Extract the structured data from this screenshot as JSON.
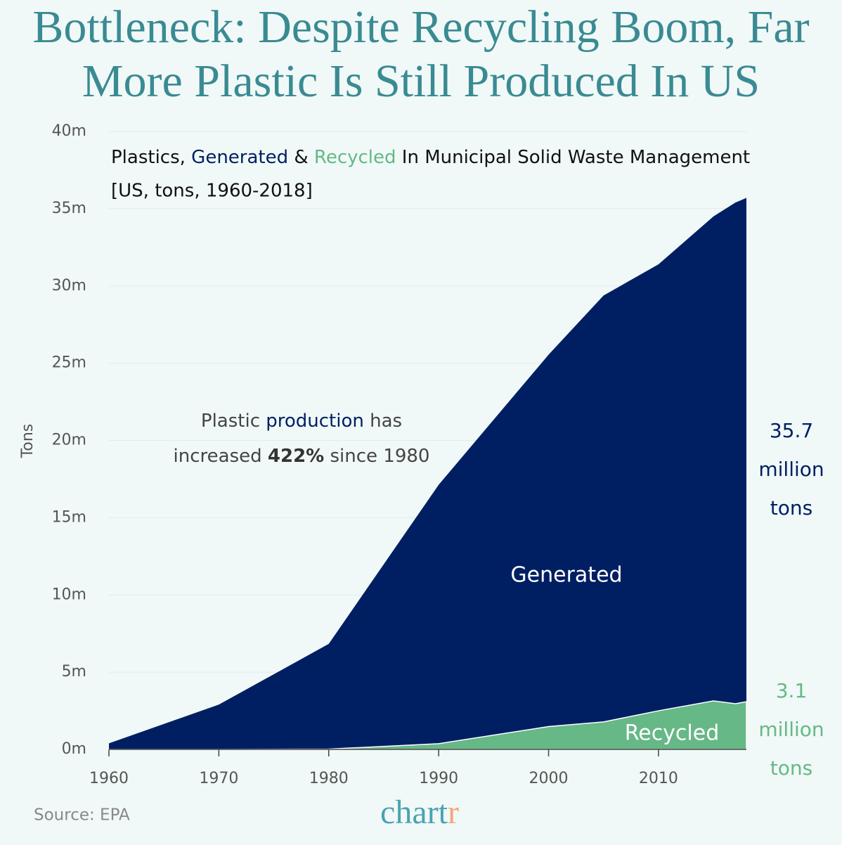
{
  "chart_data": {
    "type": "area",
    "title": [
      "Bottleneck: Despite Recycling Boom, Far",
      "More Plastic Is Still Produced In US"
    ],
    "subtitle_parts": [
      {
        "text": "Plastics, ",
        "color": "#111111"
      },
      {
        "text": "Generated",
        "color": "#001f63"
      },
      {
        "text": " & ",
        "color": "#111111"
      },
      {
        "text": "Recycled",
        "color": "#66b886"
      },
      {
        "text": " In Municipal Solid Waste Management",
        "color": "#111111"
      }
    ],
    "subtitle2": "[US, tons, 1960-2018]",
    "y_label": "Tons",
    "annotation_lines": [
      [
        {
          "text": "Plastic ",
          "color": "#444444"
        },
        {
          "text": "production",
          "color": "#001f63"
        },
        {
          "text": " has",
          "color": "#444444"
        }
      ],
      [
        {
          "text": "increased ",
          "color": "#444444"
        },
        {
          "text": "422%",
          "color": "#333333",
          "bold": true
        },
        {
          "text": " since 1980",
          "color": "#444444"
        }
      ]
    ],
    "end_labels": [
      {
        "lines": [
          "35.7",
          "million",
          "tons"
        ],
        "color": "#001f63"
      },
      {
        "lines": [
          "3.1",
          "million",
          "tons"
        ],
        "color": "#66b886"
      }
    ],
    "source": "Source: EPA",
    "logo": [
      {
        "text": "chart",
        "color": "#4aa3b3"
      },
      {
        "text": "r",
        "color": "#f0a878"
      }
    ],
    "x": [
      1960,
      1970,
      1980,
      1990,
      2000,
      2005,
      2010,
      2015,
      2017,
      2018
    ],
    "series": [
      {
        "name": "Generated",
        "color": "#001f63",
        "values": [
          0.39,
          2.9,
          6.83,
          17.13,
          25.55,
          29.38,
          31.4,
          34.5,
          35.4,
          35.7
        ]
      },
      {
        "name": "Recycled",
        "color": "#66b886",
        "values": [
          0,
          0,
          0.02,
          0.37,
          1.48,
          1.78,
          2.5,
          3.14,
          2.96,
          3.09
        ]
      }
    ],
    "xlim": [
      1960,
      2018
    ],
    "ylim": [
      0,
      40
    ],
    "xticks": [
      1960,
      1970,
      1980,
      1990,
      2000,
      2010
    ],
    "yticks": [
      {
        "value": 0,
        "label": "0m"
      },
      {
        "value": 5,
        "label": "5m"
      },
      {
        "value": 10,
        "label": "10m"
      },
      {
        "value": 15,
        "label": "15m"
      },
      {
        "value": 20,
        "label": "20m"
      },
      {
        "value": 25,
        "label": "25m"
      },
      {
        "value": 30,
        "label": "30m"
      },
      {
        "value": 35,
        "label": "35m"
      },
      {
        "value": 40,
        "label": "40m"
      }
    ],
    "grid": true
  }
}
